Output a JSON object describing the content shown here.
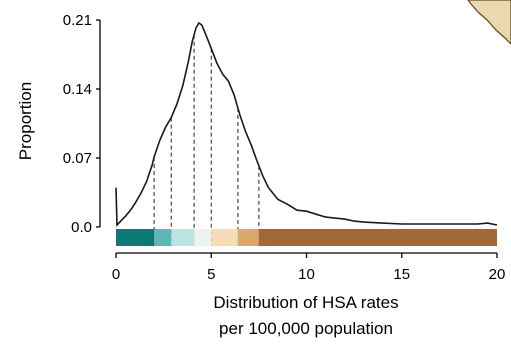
{
  "chart_data": {
    "type": "area",
    "xlabel_lines": [
      "Distribution of HSA rates",
      "per 100,000 population"
    ],
    "ylabel": "Proportion",
    "xlim": [
      0,
      20
    ],
    "ylim": [
      0,
      0.21
    ],
    "x_ticks": [
      {
        "value": 0,
        "label": "0"
      },
      {
        "value": 5,
        "label": "5"
      },
      {
        "value": 10,
        "label": "10"
      },
      {
        "value": 15,
        "label": "15"
      },
      {
        "value": 20,
        "label": "20"
      }
    ],
    "y_ticks": [
      {
        "value": 0,
        "label": "0.0"
      },
      {
        "value": 0.07,
        "label": "0.07"
      },
      {
        "value": 0.14,
        "label": "0.14"
      },
      {
        "value": 0.21,
        "label": "0.21"
      }
    ],
    "density": {
      "x": [
        0.0,
        0.05,
        0.15,
        0.3,
        0.5,
        0.8,
        1.0,
        1.3,
        1.6,
        1.9,
        2.0,
        2.3,
        2.6,
        2.9,
        3.2,
        3.5,
        3.8,
        4.0,
        4.2,
        4.35,
        4.5,
        4.7,
        5.0,
        5.3,
        5.6,
        5.9,
        6.2,
        6.5,
        6.8,
        7.1,
        7.4,
        7.7,
        8.0,
        8.5,
        9.0,
        9.5,
        10.0,
        10.5,
        11.0,
        11.5,
        12.0,
        12.5,
        13.0,
        14.0,
        15.0,
        16.0,
        17.0,
        18.0,
        19.0,
        19.5,
        20.0
      ],
      "y": [
        0.04,
        0.002,
        0.004,
        0.007,
        0.011,
        0.018,
        0.024,
        0.034,
        0.046,
        0.063,
        0.071,
        0.088,
        0.101,
        0.111,
        0.125,
        0.143,
        0.168,
        0.188,
        0.202,
        0.207,
        0.205,
        0.196,
        0.181,
        0.166,
        0.155,
        0.148,
        0.134,
        0.114,
        0.097,
        0.083,
        0.067,
        0.052,
        0.04,
        0.028,
        0.023,
        0.017,
        0.016,
        0.013,
        0.01,
        0.009,
        0.008,
        0.006,
        0.005,
        0.004,
        0.003,
        0.003,
        0.003,
        0.003,
        0.003,
        0.004,
        0.002
      ]
    },
    "dashed_breaks": [
      2.0,
      2.9,
      4.1,
      5.0,
      6.4,
      7.5
    ],
    "legend_bar": {
      "range": [
        0,
        20
      ],
      "segments": [
        {
          "from": 0,
          "to": 2.0,
          "color": "#0a7a73"
        },
        {
          "from": 2.0,
          "to": 2.9,
          "color": "#5fb7b5"
        },
        {
          "from": 2.9,
          "to": 4.1,
          "color": "#bde3e0"
        },
        {
          "from": 4.1,
          "to": 5.0,
          "color": "#eef2f1"
        },
        {
          "from": 5.0,
          "to": 6.4,
          "color": "#f5dcb8"
        },
        {
          "from": 6.4,
          "to": 7.5,
          "color": "#d9a96b"
        },
        {
          "from": 7.5,
          "to": 20,
          "color": "#a0693a"
        }
      ]
    },
    "grid": false,
    "legend": "none"
  },
  "corner_decoration": {
    "fill": "#ead9b0",
    "stroke": "#6b4a25"
  }
}
